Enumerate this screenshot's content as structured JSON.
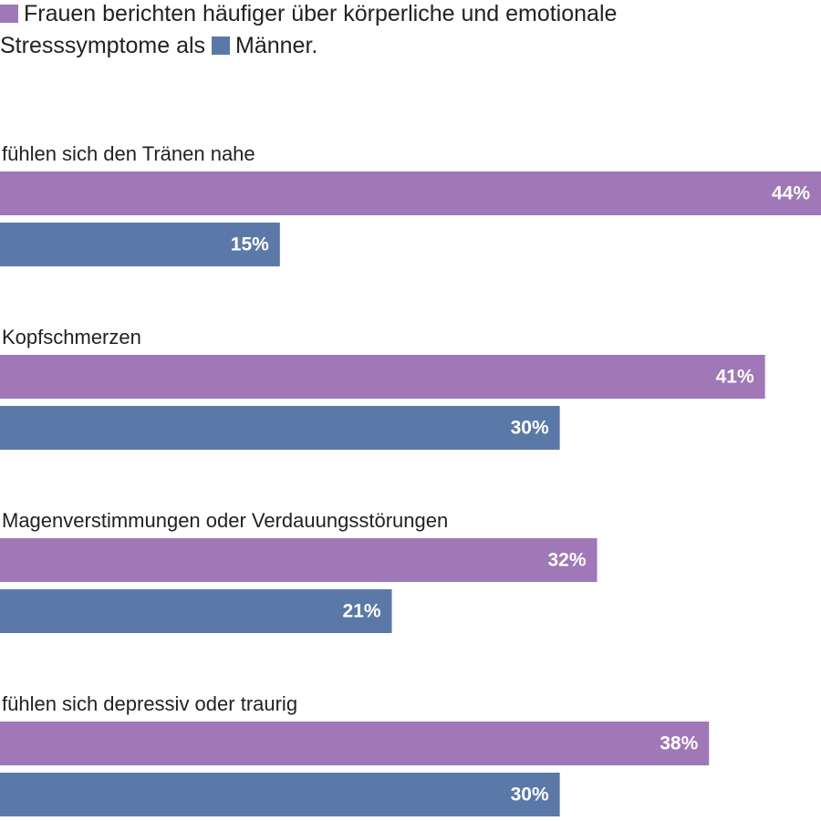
{
  "chart_data": {
    "type": "bar",
    "orientation": "horizontal",
    "categories": [
      "fühlen sich den Tränen nahe",
      "Kopfschmerzen",
      "Magenverstimmungen oder Verdauungsstörungen",
      "fühlen sich depressiv oder traurig"
    ],
    "series": [
      {
        "name": "Frauen berichten häufiger über körperliche und emotionale Stresssymptome als",
        "color": "#a077b7",
        "values": [
          44,
          41,
          32,
          38
        ],
        "value_labels": [
          "44%",
          "41%",
          "32%",
          "38%"
        ]
      },
      {
        "name": "Männer.",
        "color": "#5b79a8",
        "values": [
          15,
          30,
          21,
          30
        ],
        "value_labels": [
          "15%",
          "30%",
          "21%",
          "30%"
        ]
      }
    ]
  }
}
